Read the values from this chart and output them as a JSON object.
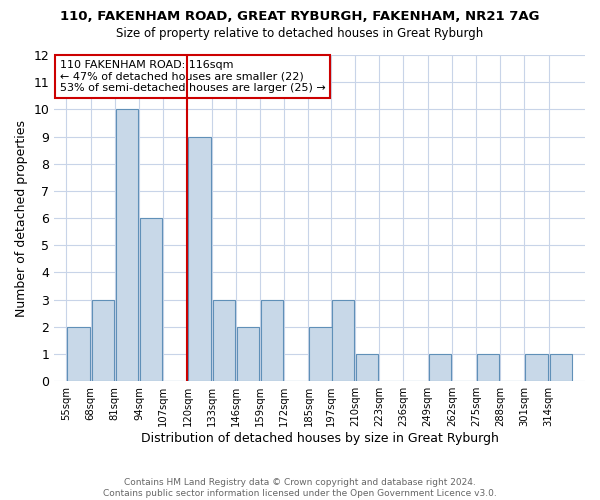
{
  "title": "110, FAKENHAM ROAD, GREAT RYBURGH, FAKENHAM, NR21 7AG",
  "subtitle": "Size of property relative to detached houses in Great Ryburgh",
  "xlabel": "Distribution of detached houses by size in Great Ryburgh",
  "ylabel": "Number of detached properties",
  "bins": [
    55,
    68,
    81,
    94,
    107,
    120,
    133,
    146,
    159,
    172,
    185,
    197,
    210,
    223,
    236,
    249,
    262,
    275,
    288,
    301,
    314
  ],
  "bin_labels": [
    "55sqm",
    "68sqm",
    "81sqm",
    "94sqm",
    "107sqm",
    "120sqm",
    "133sqm",
    "146sqm",
    "159sqm",
    "172sqm",
    "185sqm",
    "197sqm",
    "210sqm",
    "223sqm",
    "236sqm",
    "249sqm",
    "262sqm",
    "275sqm",
    "288sqm",
    "301sqm",
    "314sqm"
  ],
  "counts": [
    2,
    3,
    10,
    6,
    0,
    9,
    3,
    2,
    3,
    0,
    2,
    3,
    1,
    0,
    0,
    1,
    0,
    1,
    0,
    1,
    1
  ],
  "bar_color": "#c8d8e8",
  "bar_edge_color": "#6090b8",
  "vline_x": 120,
  "vline_color": "#cc0000",
  "ylim": [
    0,
    12
  ],
  "yticks": [
    0,
    1,
    2,
    3,
    4,
    5,
    6,
    7,
    8,
    9,
    10,
    11,
    12
  ],
  "annotation_text": "110 FAKENHAM ROAD: 116sqm\n← 47% of detached houses are smaller (22)\n53% of semi-detached houses are larger (25) →",
  "annotation_box_color": "#ffffff",
  "annotation_box_edge": "#cc0000",
  "footer_text": "Contains HM Land Registry data © Crown copyright and database right 2024.\nContains public sector information licensed under the Open Government Licence v3.0.",
  "background_color": "#ffffff",
  "grid_color": "#c8d4e8"
}
